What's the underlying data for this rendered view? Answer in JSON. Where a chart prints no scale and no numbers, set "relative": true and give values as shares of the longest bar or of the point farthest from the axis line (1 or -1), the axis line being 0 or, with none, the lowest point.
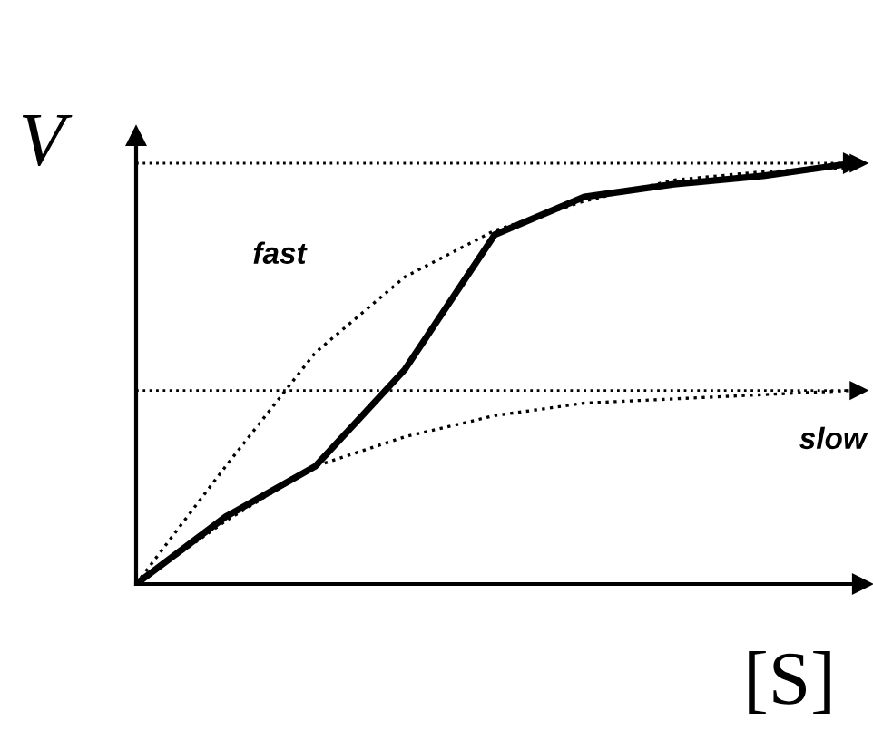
{
  "chart_data": {
    "type": "line",
    "relative": true,
    "xlabel": "[S]",
    "ylabel": "V",
    "categories": [
      null,
      null,
      null,
      null,
      null,
      null,
      null,
      null,
      null
    ],
    "series": [
      {
        "color": "#000000",
        "line_style": "dotted",
        "values": [
          0,
          0.28,
          0.55,
          0.73,
          0.84,
          0.91,
          0.96,
          0.98,
          0.99
        ]
      },
      {
        "color": "#000000",
        "line_style": "dotted",
        "values": [
          0,
          0.15,
          0.28,
          0.35,
          0.4,
          0.43,
          0.44,
          0.45,
          0.46
        ]
      },
      {
        "color": "#000000",
        "line_style": "solid",
        "values": [
          0,
          0.16,
          0.28,
          0.51,
          0.83,
          0.92,
          0.95,
          0.97,
          1.0
        ]
      }
    ],
    "ref_lines": [
      {
        "axis": "y",
        "value": 1.0,
        "color": "#000000",
        "line_style": "dotted"
      },
      {
        "axis": "y",
        "value": 0.46,
        "color": "#000000",
        "line_style": "dotted"
      }
    ],
    "annotations": [
      "fast",
      "slow"
    ],
    "legend": false,
    "marker": "none"
  }
}
